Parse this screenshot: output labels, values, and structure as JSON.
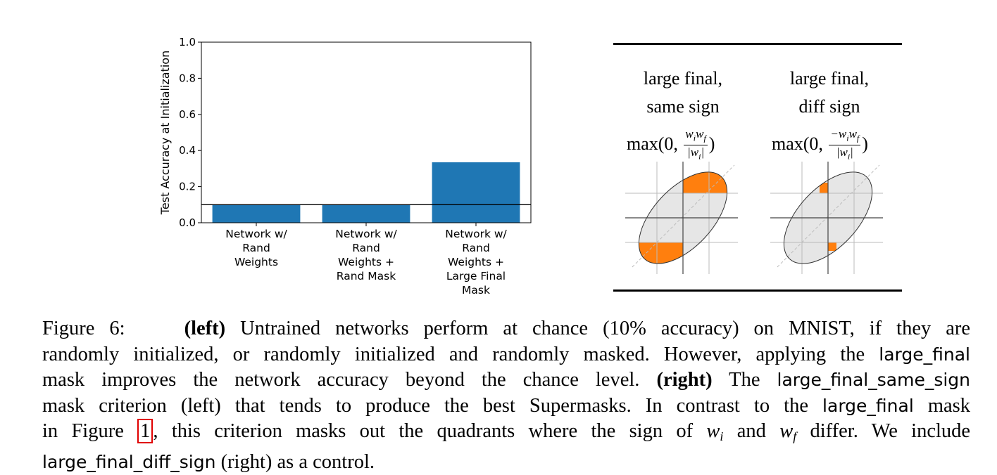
{
  "chart_data": {
    "type": "bar",
    "categories": [
      [
        "Network w/",
        "Rand",
        "Weights"
      ],
      [
        "Network w/",
        "Rand",
        "Weights +",
        "Rand Mask"
      ],
      [
        "Network w/",
        "Rand",
        "Weights +",
        "Large Final",
        "Mask"
      ]
    ],
    "values": [
      0.1,
      0.1,
      0.335
    ],
    "ylabel": "Test Accuracy at Initialization",
    "ylim": [
      0.0,
      1.0
    ],
    "yticks": [
      "0.0",
      "0.2",
      "0.4",
      "0.6",
      "0.8",
      "1.0"
    ],
    "chance_line": 0.1,
    "bar_color": "#1f77b4"
  },
  "table": {
    "col1": {
      "head_line1": "large final,",
      "head_line2": "same sign"
    },
    "col2": {
      "head_line1": "large final,",
      "head_line2": "diff sign"
    },
    "formula_prefix": "max(0, ",
    "formula_suffix": ")",
    "formula1_num": "w",
    "formula2_num": "−w",
    "highlight_color": "#ff7f0e",
    "ellipse_color": "#e6e6e6"
  },
  "caption": {
    "fig_label": "Figure 6:",
    "left_tag": "(left)",
    "l1_rest": "Untrained networks perform at chance (10% accuracy) on MNIST, if they are",
    "l2_a": "randomly initialized, or randomly initialized and randomly masked. However, applying the",
    "l2_code": "large_final",
    "l3_a": "mask improves the network accuracy beyond the chance level.",
    "right_tag": "(right)",
    "l3_b": "The",
    "l3_code": "large_final_same_sign",
    "l4_a": "mask criterion (left) that tends to produce the best Supermasks. In contrast to the",
    "l4_code": "large_final",
    "l4_b": "mask",
    "l5_a": "in Figure",
    "l5_ref": "1",
    "l5_b": ", this criterion masks out the quadrants where the sign of",
    "l5_and": "and",
    "l5_c": "differ. We include",
    "l6_code": "large_final_diff_sign",
    "l6_b": "(right) as a control."
  }
}
